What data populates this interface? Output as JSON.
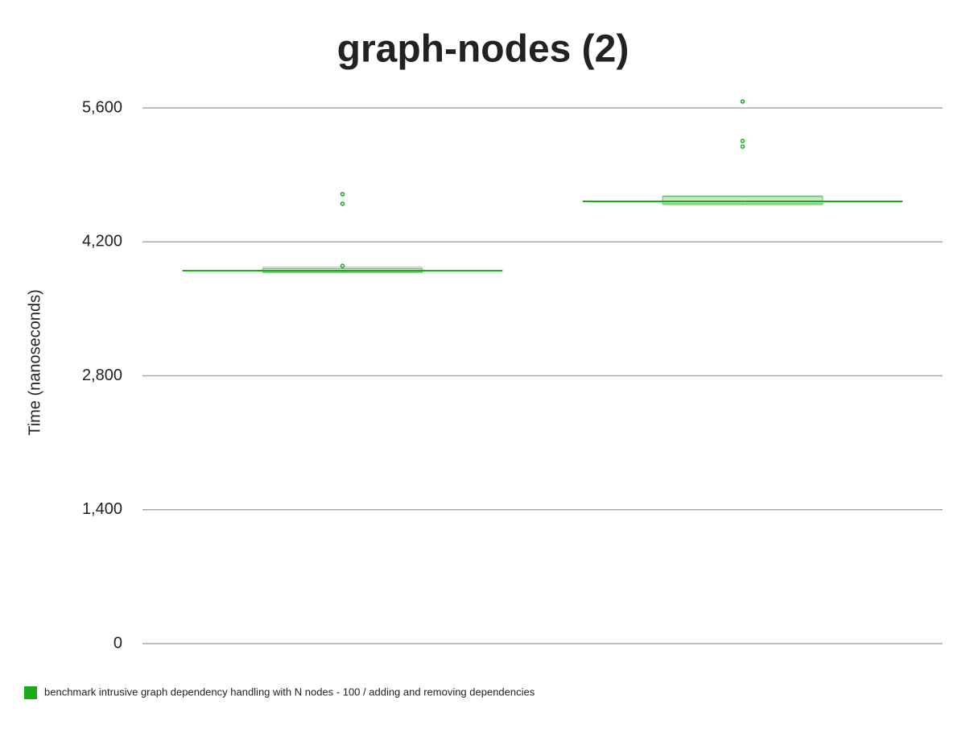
{
  "chart_data": {
    "type": "box",
    "title": "graph-nodes (2)",
    "y_label": "Time (nanoseconds)",
    "categories": [
      null,
      null
    ],
    "series": [
      {
        "name": "benchmark intrusive graph dependency handling with N nodes - 100 / adding and removing dependencies",
        "color": "#1aaa1a",
        "boxes": [
          {
            "whislo": 3880,
            "q1": 3885,
            "med": 3899,
            "q3": 3920,
            "whishi": 3935,
            "fliers": [
              4699,
              4598,
              3949
            ]
          },
          {
            "whislo": 4590,
            "q1": 4598,
            "med": 4623,
            "q3": 4674,
            "whishi": 4680,
            "fliers": [
              5667,
              5255,
              5196
            ]
          }
        ]
      }
    ],
    "ylim": [
      0,
      5600
    ],
    "yticks": [
      0,
      {
        "value": 1400,
        "label": "1,400"
      },
      {
        "value": 2800,
        "label": "2,800"
      },
      {
        "value": 4200,
        "label": "4,200"
      },
      {
        "value": 5600,
        "label": "5,600"
      }
    ],
    "grid": true,
    "legend": "bottom"
  }
}
